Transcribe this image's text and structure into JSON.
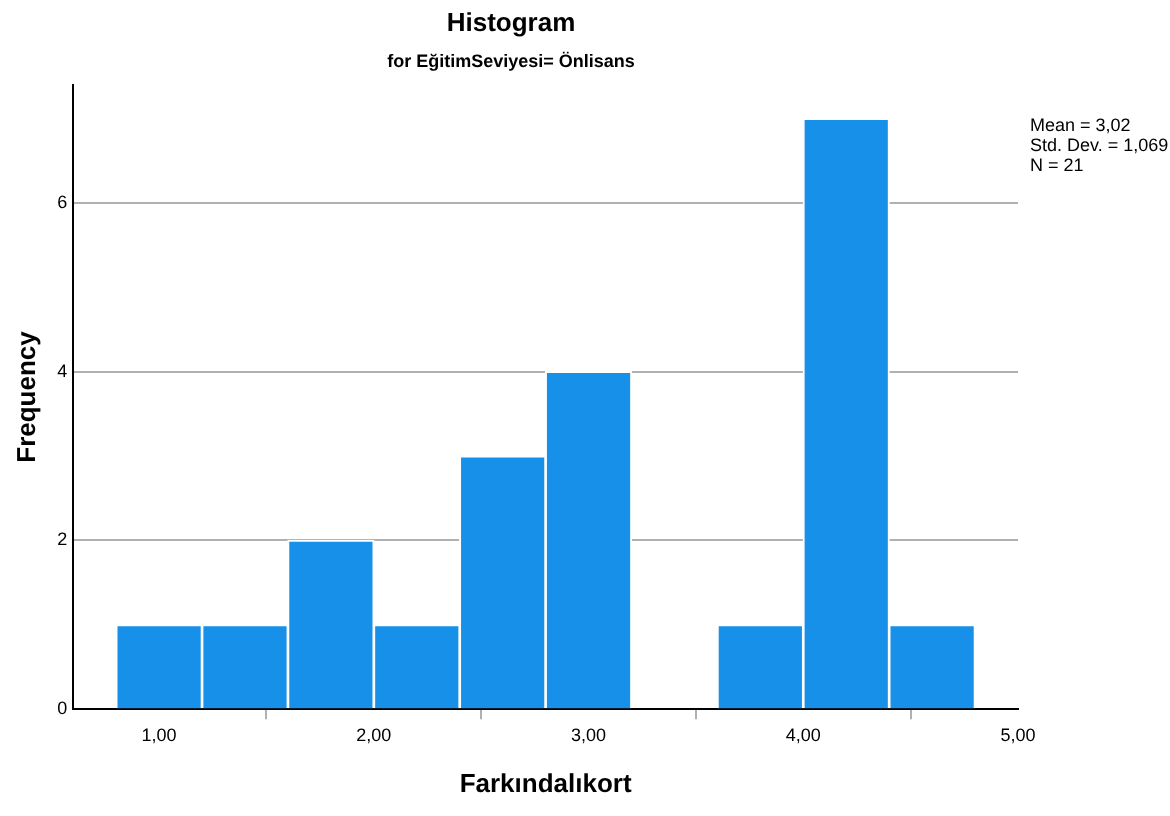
{
  "chart_data": {
    "type": "histogram",
    "title": "Histogram",
    "subtitle": "for EğitimSeviyesi= Önlisans",
    "xlabel": "Farkındalıkort",
    "ylabel": "Frequency",
    "bins": [
      0.8,
      1.2,
      1.6,
      2.0,
      2.4,
      2.8,
      3.2,
      3.6,
      4.0,
      4.4,
      4.8
    ],
    "values": [
      1,
      1,
      2,
      1,
      3,
      4,
      0,
      1,
      7,
      1
    ],
    "color": "#1690e8",
    "xlim": [
      0.6,
      5.0
    ],
    "xticks": [
      {
        "value": 1,
        "label": "1,00"
      },
      {
        "value": 2,
        "label": "2,00"
      },
      {
        "value": 3,
        "label": "3,00"
      },
      {
        "value": 4,
        "label": "4,00"
      },
      {
        "value": 5,
        "label": "5,00"
      }
    ],
    "ylim": [
      0,
      7.4
    ],
    "yticks": [
      0,
      2,
      4,
      6
    ],
    "grid": "y",
    "annotations": [
      "Mean = 3,02",
      "Std. Dev. = 1,069",
      "N = 21"
    ]
  }
}
